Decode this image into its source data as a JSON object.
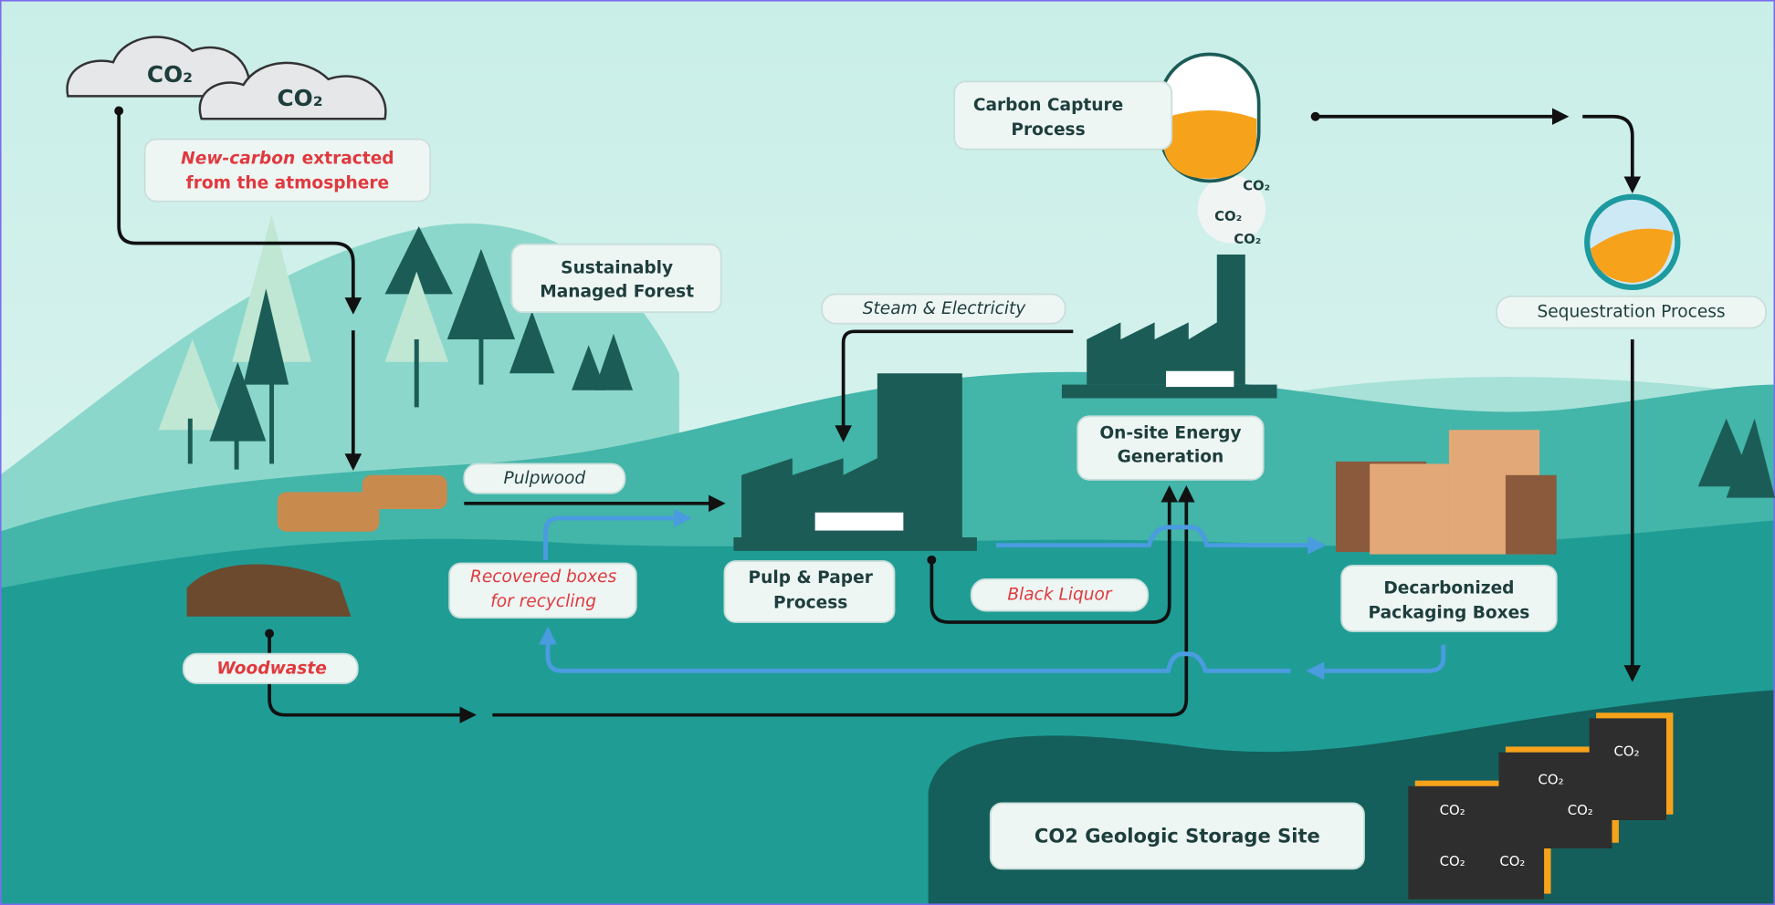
{
  "atmosphere": {
    "clouds": [
      "CO₂",
      "CO₂"
    ],
    "note": {
      "emphasis": "New-carbon",
      "line1": "extracted",
      "line2": "from the atmosphere"
    }
  },
  "forest": [
    "Sustainably",
    "Managed Forest"
  ],
  "steam": "Steam & Electricity",
  "carbon_capture": [
    "Carbon Capture",
    "Process"
  ],
  "smoke": [
    "CO₂",
    "CO₂",
    "CO₂"
  ],
  "sequestration": "Sequestration Process",
  "energy": [
    "On-site Energy",
    "Generation"
  ],
  "pulpwood": "Pulpwood",
  "recovered": [
    "Recovered boxes",
    "for recycling"
  ],
  "pulp": [
    "Pulp & Paper",
    "Process"
  ],
  "black_liquor": "Black Liquor",
  "packaging": [
    "Decarbonized",
    "Packaging Boxes"
  ],
  "woodwaste": "Woodwaste",
  "storage": {
    "title": "CO2 Geologic Storage Site",
    "co2": [
      "CO₂",
      "CO₂",
      "CO₂",
      "CO₂",
      "CO₂",
      "CO₂"
    ]
  }
}
